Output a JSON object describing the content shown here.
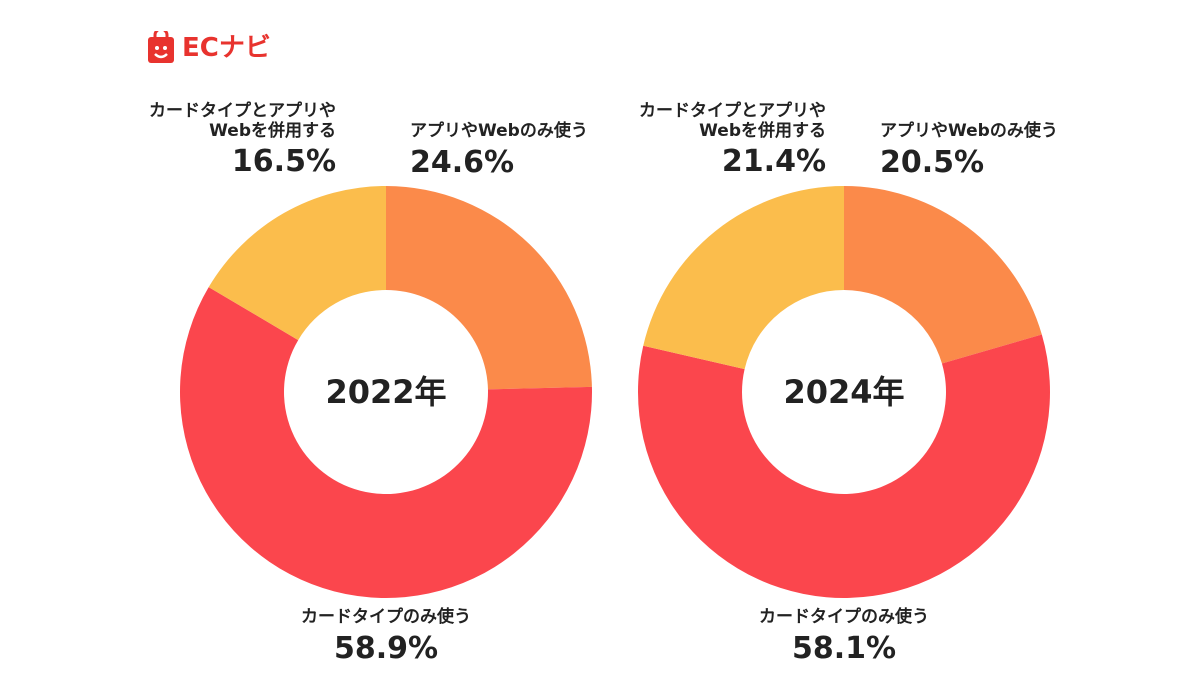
{
  "brand": {
    "logo_text": "ECナビ",
    "accent": "#e8332e"
  },
  "colors": {
    "card_only": "#fb464d",
    "app_web_only": "#fb8a4a",
    "both": "#fbbd4c"
  },
  "chart_data": [
    {
      "type": "pie",
      "variant": "donut",
      "center_label": "2022年",
      "categories": [
        "アプリやWebのみ使う",
        "カードタイプのみ使う",
        "カードタイプとアプリやWebを併用する"
      ],
      "values": [
        24.6,
        58.9,
        16.5
      ],
      "labels": {
        "app_web_only": {
          "name": "アプリやWebのみ使う",
          "pct": "24.6%"
        },
        "card_only": {
          "name": "カードタイプのみ使う",
          "pct": "58.9%"
        },
        "both": {
          "name_line1": "カードタイプとアプリや",
          "name_line2": "Webを併用する",
          "pct": "16.5%"
        }
      }
    },
    {
      "type": "pie",
      "variant": "donut",
      "center_label": "2024年",
      "categories": [
        "アプリやWebのみ使う",
        "カードタイプのみ使う",
        "カードタイプとアプリやWebを併用する"
      ],
      "values": [
        20.5,
        58.1,
        21.4
      ],
      "labels": {
        "app_web_only": {
          "name": "アプリやWebのみ使う",
          "pct": "20.5%"
        },
        "card_only": {
          "name": "カードタイプのみ使う",
          "pct": "58.1%"
        },
        "both": {
          "name_line1": "カードタイプとアプリや",
          "name_line2": "Webを併用する",
          "pct": "21.4%"
        }
      }
    }
  ]
}
